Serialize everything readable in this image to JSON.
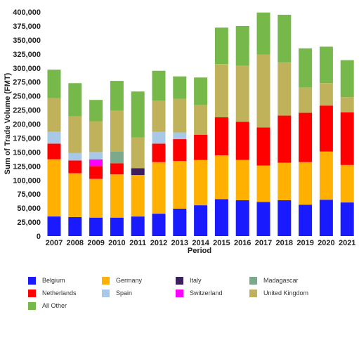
{
  "chart_data": {
    "type": "bar",
    "stacked": true,
    "title": "",
    "xlabel": "Period",
    "ylabel": "Sum of Trade Volume (FMT)",
    "ylim": [
      0,
      400000
    ],
    "yticks": [
      0,
      25000,
      50000,
      75000,
      100000,
      125000,
      150000,
      175000,
      200000,
      225000,
      250000,
      275000,
      300000,
      325000,
      350000,
      375000,
      400000
    ],
    "ytick_labels": [
      "0",
      "25,000",
      "50,000",
      "75,000",
      "100,000",
      "125,000",
      "150,000",
      "175,000",
      "200,000",
      "225,000",
      "250,000",
      "275,000",
      "300,000",
      "325,000",
      "350,000",
      "375,000",
      "400,000"
    ],
    "categories": [
      "2007",
      "2008",
      "2009",
      "2010",
      "2011",
      "2012",
      "2013",
      "2014",
      "2015",
      "2016",
      "2017",
      "2018",
      "2019",
      "2020",
      "2021"
    ],
    "grid": false,
    "legend_position": "bottom",
    "series": [
      {
        "name": "Belgium",
        "color": "#1a1aff",
        "values": [
          35000,
          34000,
          33000,
          33000,
          35000,
          40000,
          49000,
          55000,
          66000,
          64000,
          61000,
          64000,
          56000,
          65000,
          60000
        ]
      },
      {
        "name": "Germany",
        "color": "#ffb000",
        "values": [
          102000,
          78000,
          69000,
          77000,
          74000,
          92000,
          85000,
          81000,
          78000,
          72000,
          65000,
          67000,
          76000,
          86000,
          67000
        ]
      },
      {
        "name": "Italy",
        "color": "#3b1f5e",
        "values": [
          0,
          0,
          0,
          0,
          12000,
          0,
          0,
          0,
          0,
          0,
          0,
          0,
          0,
          0,
          0
        ]
      },
      {
        "name": "Netherlands",
        "color": "#ff0000",
        "values": [
          28000,
          23000,
          23000,
          20000,
          0,
          33000,
          39000,
          45000,
          68000,
          68000,
          68000,
          84000,
          88000,
          82000,
          94000
        ]
      },
      {
        "name": "Madagascar",
        "color": "#7aa98c",
        "values": [
          0,
          0,
          0,
          21000,
          0,
          0,
          0,
          0,
          0,
          0,
          0,
          0,
          0,
          0,
          0
        ]
      },
      {
        "name": "Switzerland",
        "color": "#ff00ff",
        "values": [
          0,
          0,
          12000,
          0,
          0,
          0,
          0,
          0,
          0,
          0,
          0,
          0,
          0,
          0,
          0
        ]
      },
      {
        "name": "Spain",
        "color": "#a8c8e8",
        "values": [
          21000,
          13000,
          13000,
          0,
          0,
          21000,
          12000,
          0,
          0,
          0,
          0,
          0,
          0,
          0,
          0
        ]
      },
      {
        "name": "United Kingdom",
        "color": "#bfb25a",
        "values": [
          60000,
          66000,
          55000,
          73000,
          55000,
          56000,
          60000,
          53000,
          95000,
          100000,
          130000,
          95000,
          45000,
          40000,
          27000
        ]
      },
      {
        "name": "All Other",
        "color": "#77b84a",
        "values": [
          51000,
          59000,
          38000,
          53000,
          82000,
          53000,
          40000,
          49000,
          65000,
          71000,
          75000,
          85000,
          70000,
          65000,
          66000
        ]
      }
    ],
    "legend": [
      {
        "name": "Belgium",
        "color": "#1a1aff"
      },
      {
        "name": "Germany",
        "color": "#ffb000"
      },
      {
        "name": "Italy",
        "color": "#3b1f5e"
      },
      {
        "name": "Madagascar",
        "color": "#7aa98c"
      },
      {
        "name": "Netherlands",
        "color": "#ff0000"
      },
      {
        "name": "Spain",
        "color": "#a8c8e8"
      },
      {
        "name": "Switzerland",
        "color": "#ff00ff"
      },
      {
        "name": "United Kingdom",
        "color": "#bfb25a"
      },
      {
        "name": "All Other",
        "color": "#77b84a"
      }
    ]
  }
}
